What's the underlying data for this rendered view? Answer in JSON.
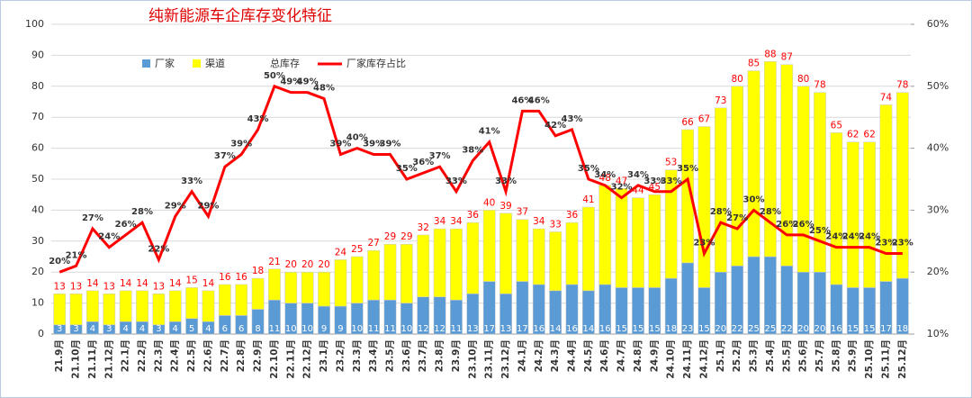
{
  "chart_data": {
    "type": "bar",
    "title": "纯新能源车企库存变化特征",
    "categories": [
      "21.9月",
      "21.10月",
      "21.11月",
      "21.12月",
      "22.1月",
      "22.2月",
      "22.3月",
      "22.4月",
      "22.5月",
      "22.6月",
      "22.7月",
      "22.8月",
      "22.9月",
      "22.10月",
      "22.11月",
      "22.12月",
      "23.1月",
      "23.2月",
      "23.3月",
      "23.4月",
      "23.5月",
      "23.6月",
      "23.7月",
      "23.8月",
      "23.9月",
      "23.10月",
      "23.11月",
      "23.12月",
      "24.1月",
      "24.2月",
      "24.3月",
      "24.4月",
      "24.5月",
      "24.6月",
      "24.7月",
      "24.8月",
      "24.9月",
      "24.10月",
      "24.11月",
      "24.12月",
      "25.1月",
      "25.2月",
      "25.3月",
      "25.4月",
      "25.5月",
      "25.6月",
      "25.7月",
      "25.8月",
      "25.9月",
      "25.10月",
      "25.11月",
      "25.12月"
    ],
    "series": [
      {
        "name": "厂家",
        "type": "bar",
        "color": "#5b9bd5",
        "values": [
          3,
          3,
          4,
          3,
          4,
          4,
          3,
          4,
          5,
          4,
          6,
          6,
          8,
          11,
          10,
          10,
          9,
          9,
          10,
          11,
          11,
          10,
          12,
          12,
          11,
          13,
          17,
          13,
          17,
          16,
          14,
          16,
          14,
          16,
          15,
          15,
          15,
          18,
          23,
          15,
          20,
          22,
          25,
          25,
          22,
          20,
          20,
          16,
          15,
          15,
          17,
          18
        ]
      },
      {
        "name": "渠道",
        "type": "bar",
        "color": "#ffff00",
        "values": [
          10,
          10,
          10,
          10,
          10,
          10,
          10,
          10,
          10,
          10,
          10,
          10,
          10,
          10,
          10,
          10,
          11,
          15,
          15,
          16,
          18,
          19,
          20,
          22,
          23,
          23,
          23,
          26,
          20,
          18,
          19,
          20,
          27,
          32,
          32,
          29,
          30,
          35,
          43,
          52,
          53,
          58,
          60,
          63,
          65,
          60,
          58,
          49,
          47,
          47,
          57,
          60
        ]
      },
      {
        "name": "总库存",
        "type": "label",
        "color": "#ff0000",
        "values": [
          13,
          13,
          14,
          13,
          14,
          14,
          13,
          14,
          15,
          14,
          16,
          16,
          18,
          21,
          20,
          20,
          20,
          24,
          25,
          27,
          29,
          29,
          32,
          34,
          34,
          36,
          40,
          39,
          37,
          34,
          33,
          36,
          41,
          48,
          47,
          44,
          45,
          53,
          66,
          67,
          73,
          80,
          85,
          88,
          87,
          80,
          78,
          65,
          62,
          62,
          74,
          78
        ]
      },
      {
        "name": "厂家库存占比",
        "type": "line",
        "axis": "y2",
        "color": "#ff0000",
        "values": [
          20,
          21,
          27,
          24,
          26,
          28,
          22,
          29,
          33,
          29,
          37,
          39,
          43,
          50,
          49,
          49,
          48,
          39,
          40,
          39,
          39,
          35,
          36,
          37,
          33,
          38,
          41,
          33,
          46,
          46,
          42,
          43,
          35,
          34,
          32,
          34,
          33,
          33,
          35,
          23,
          28,
          27,
          30,
          28,
          26,
          26,
          25,
          24,
          24,
          24,
          23,
          23
        ],
        "value_labels": [
          "20%",
          "21%",
          "27%",
          "24%",
          "26%",
          "28%",
          "22%",
          "29%",
          "33%",
          "29%",
          "37%",
          "39%",
          "43%",
          "50%",
          "49%",
          "49%",
          "48%",
          "39%",
          "40%",
          "39%",
          "39%",
          "35%",
          "36%",
          "37%",
          "33%",
          "38%",
          "41%",
          "33%",
          "46%",
          "46%",
          "42%",
          "43%",
          "35%",
          "34%",
          "32%",
          "34%",
          "33%",
          "33%",
          "35%",
          "23%",
          "28%",
          "27%",
          "30%",
          "28%",
          "26%",
          "26%",
          "25%",
          "24%",
          "24%",
          "24%",
          "23%",
          "23%"
        ]
      }
    ],
    "ylim": [
      0,
      100
    ],
    "yticks": [
      0,
      10,
      20,
      30,
      40,
      50,
      60,
      70,
      80,
      90,
      100
    ],
    "y2lim": [
      10,
      60
    ],
    "y2ticks": [
      {
        "value": 10,
        "label": "10%"
      },
      {
        "value": 20,
        "label": "20%"
      },
      {
        "value": 30,
        "label": "30%"
      },
      {
        "value": 40,
        "label": "40%"
      },
      {
        "value": 50,
        "label": "50%"
      },
      {
        "value": 60,
        "label": "60%"
      }
    ],
    "grid": true
  }
}
